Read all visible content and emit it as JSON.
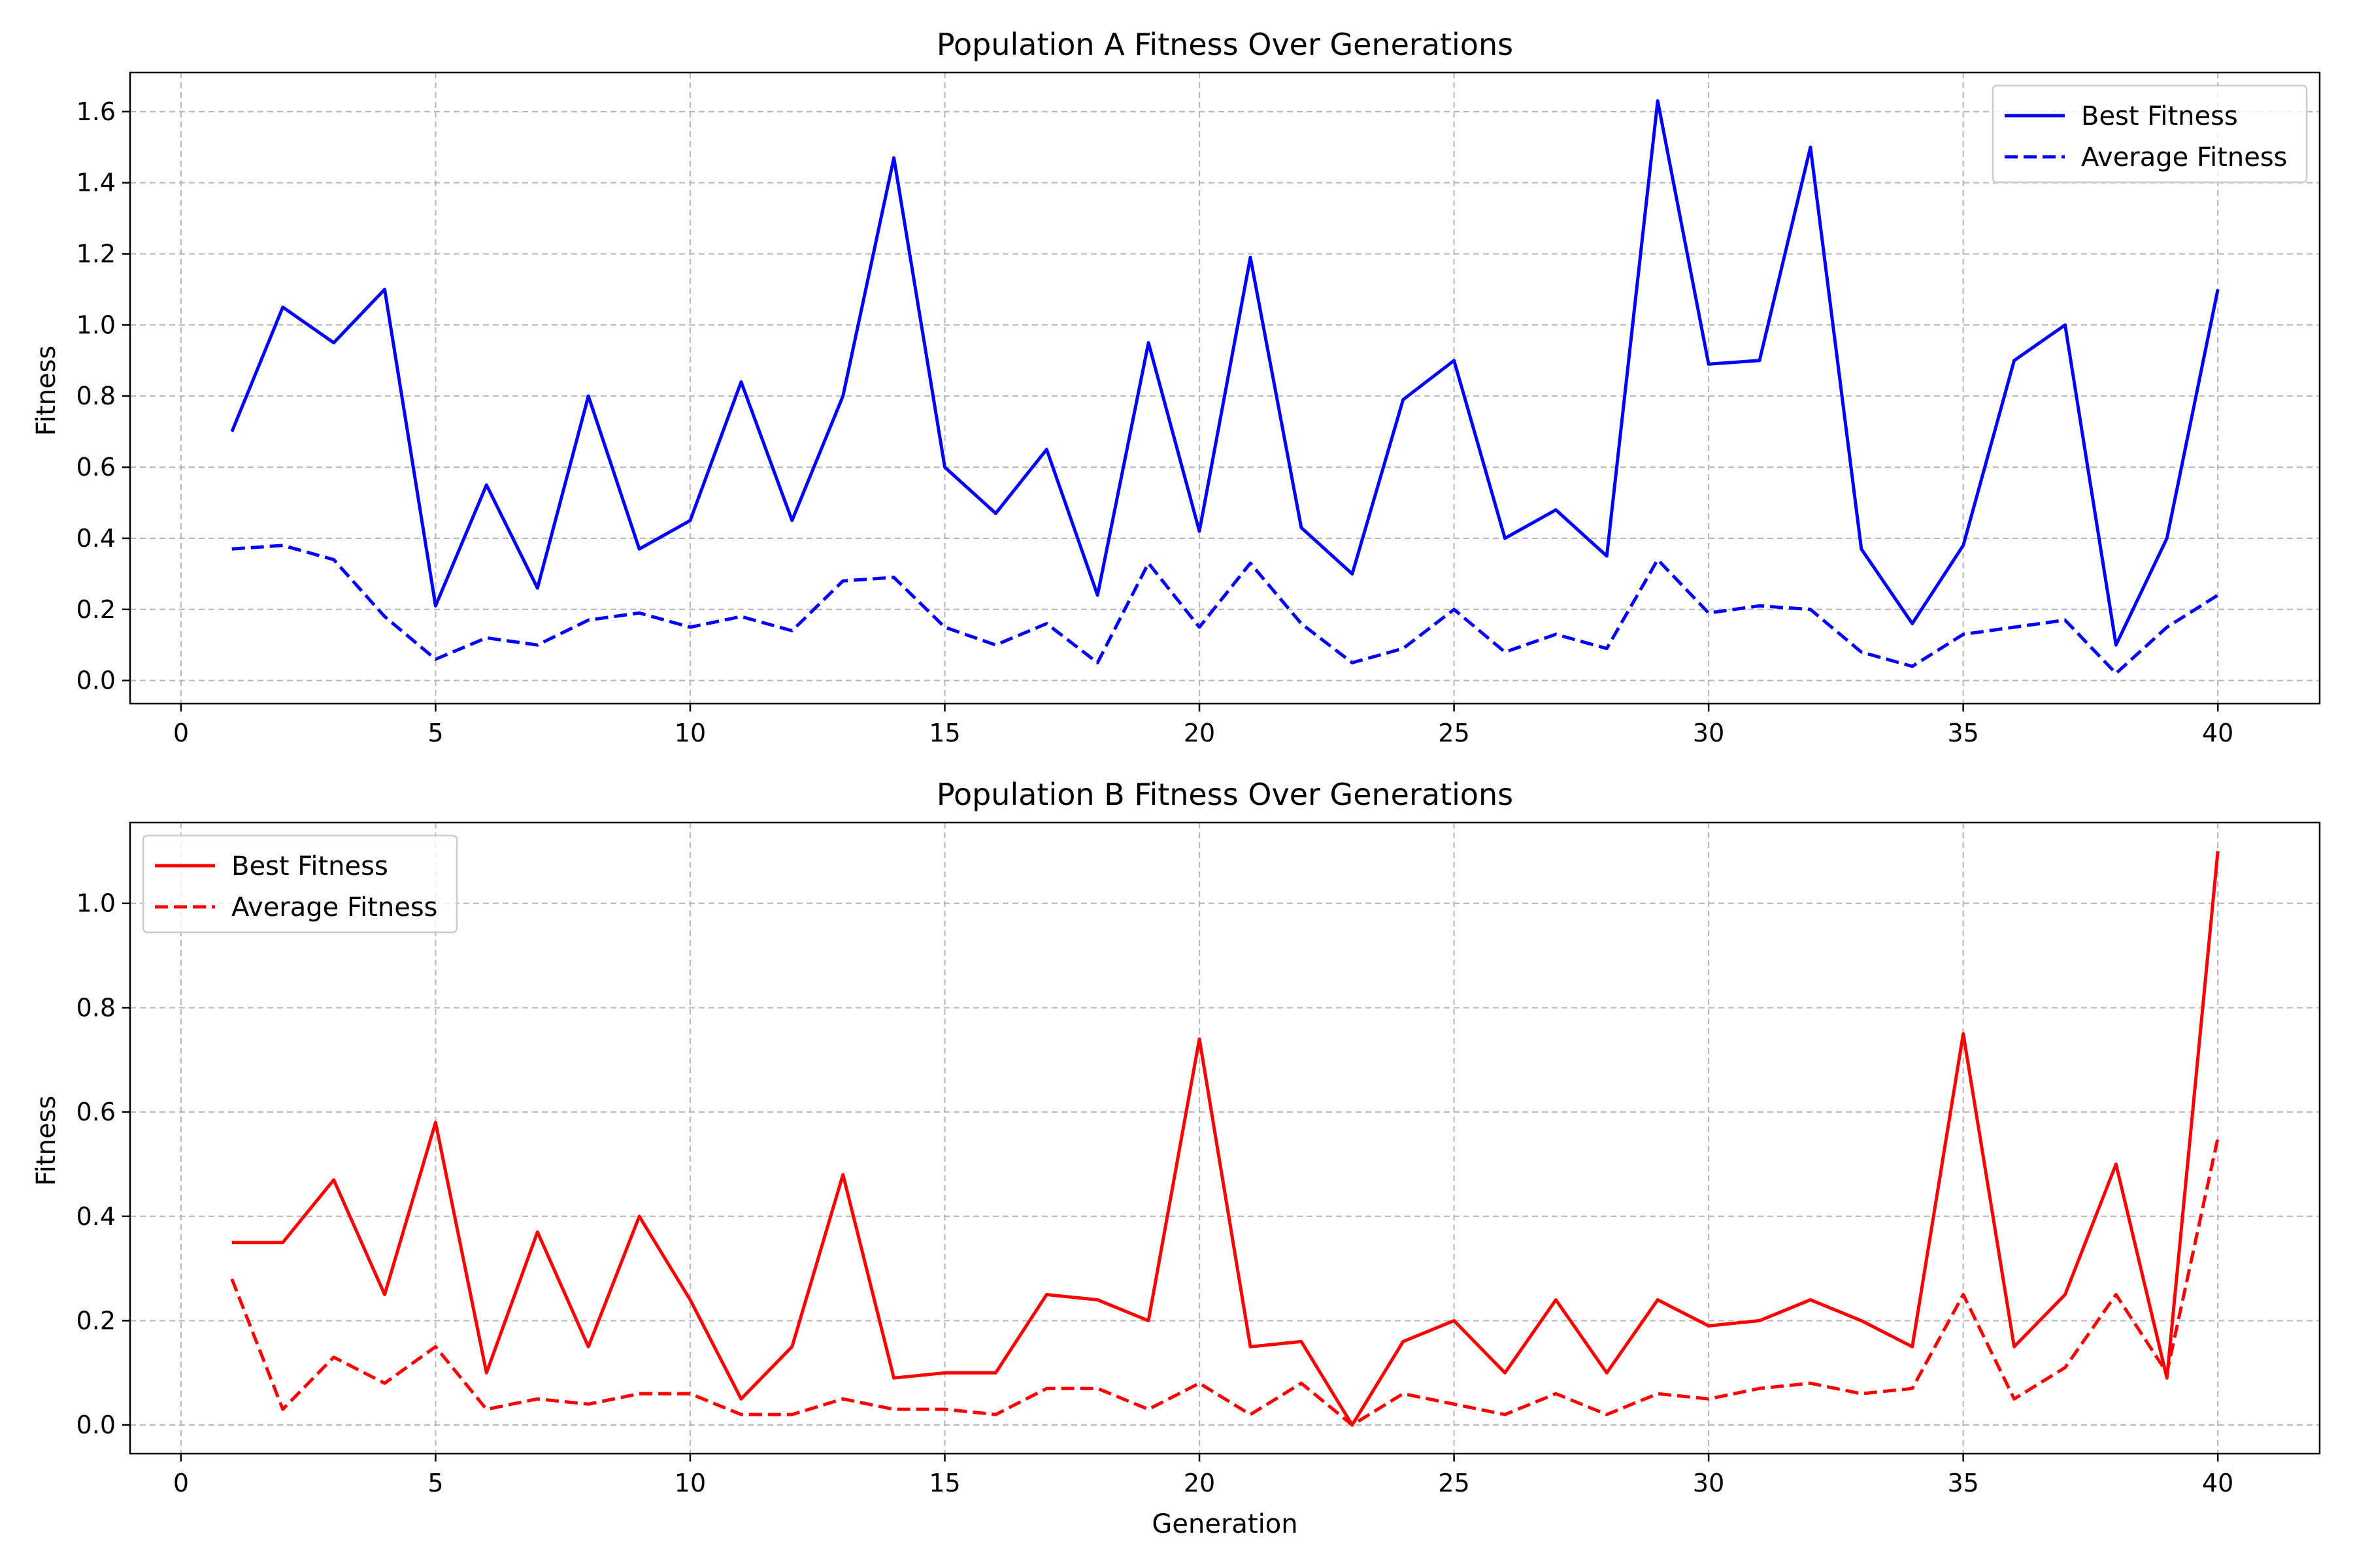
{
  "chart_data": [
    {
      "type": "line",
      "title": "Population A Fitness Over Generations",
      "xlabel": "",
      "ylabel": "Fitness",
      "xlim": [
        -1,
        42
      ],
      "ylim": [
        -0.065,
        1.71
      ],
      "xticks": [
        0,
        5,
        10,
        15,
        20,
        25,
        30,
        35,
        40
      ],
      "yticks": [
        0.0,
        0.2,
        0.4,
        0.6,
        0.8,
        1.0,
        1.2,
        1.4,
        1.6
      ],
      "grid": true,
      "legend_position": "top-right",
      "color": "#0000ff",
      "x": [
        1,
        2,
        3,
        4,
        5,
        6,
        7,
        8,
        9,
        10,
        11,
        12,
        13,
        14,
        15,
        16,
        17,
        18,
        19,
        20,
        21,
        22,
        23,
        24,
        25,
        26,
        27,
        28,
        29,
        30,
        31,
        32,
        33,
        34,
        35,
        36,
        37,
        38,
        39,
        40
      ],
      "series": [
        {
          "name": "Best Fitness",
          "style": "solid",
          "values": [
            0.7,
            1.05,
            0.95,
            1.1,
            0.21,
            0.55,
            0.26,
            0.8,
            0.37,
            0.45,
            0.84,
            0.45,
            0.8,
            1.47,
            0.6,
            0.47,
            0.65,
            0.24,
            0.95,
            0.42,
            1.19,
            0.43,
            0.3,
            0.79,
            0.9,
            0.4,
            0.48,
            0.35,
            1.63,
            0.89,
            0.9,
            1.5,
            0.37,
            0.16,
            0.38,
            0.9,
            1.0,
            0.1,
            0.4,
            1.1
          ]
        },
        {
          "name": "Average Fitness",
          "style": "dashed",
          "values": [
            0.37,
            0.38,
            0.34,
            0.18,
            0.06,
            0.12,
            0.1,
            0.17,
            0.19,
            0.15,
            0.18,
            0.14,
            0.28,
            0.29,
            0.15,
            0.1,
            0.16,
            0.05,
            0.33,
            0.15,
            0.33,
            0.16,
            0.05,
            0.09,
            0.2,
            0.08,
            0.13,
            0.09,
            0.34,
            0.19,
            0.21,
            0.2,
            0.08,
            0.04,
            0.13,
            0.15,
            0.17,
            0.02,
            0.15,
            0.24
          ]
        }
      ]
    },
    {
      "type": "line",
      "title": "Population B Fitness Over Generations",
      "xlabel": "Generation",
      "ylabel": "Fitness",
      "xlim": [
        -1,
        42
      ],
      "ylim": [
        -0.055,
        1.155
      ],
      "xticks": [
        0,
        5,
        10,
        15,
        20,
        25,
        30,
        35,
        40
      ],
      "yticks": [
        0.0,
        0.2,
        0.4,
        0.6,
        0.8,
        1.0
      ],
      "grid": true,
      "legend_position": "top-left",
      "color": "#ff0000",
      "x": [
        1,
        2,
        3,
        4,
        5,
        6,
        7,
        8,
        9,
        10,
        11,
        12,
        13,
        14,
        15,
        16,
        17,
        18,
        19,
        20,
        21,
        22,
        23,
        24,
        25,
        26,
        27,
        28,
        29,
        30,
        31,
        32,
        33,
        34,
        35,
        36,
        37,
        38,
        39,
        40
      ],
      "series": [
        {
          "name": "Best Fitness",
          "style": "solid",
          "values": [
            0.35,
            0.35,
            0.47,
            0.25,
            0.58,
            0.1,
            0.37,
            0.15,
            0.4,
            0.24,
            0.05,
            0.15,
            0.48,
            0.09,
            0.1,
            0.1,
            0.25,
            0.24,
            0.2,
            0.74,
            0.15,
            0.16,
            0.0,
            0.16,
            0.2,
            0.1,
            0.24,
            0.1,
            0.24,
            0.19,
            0.2,
            0.24,
            0.2,
            0.15,
            0.75,
            0.15,
            0.25,
            0.5,
            0.09,
            1.1
          ]
        },
        {
          "name": "Average Fitness",
          "style": "dashed",
          "values": [
            0.28,
            0.03,
            0.13,
            0.08,
            0.15,
            0.03,
            0.05,
            0.04,
            0.06,
            0.06,
            0.02,
            0.02,
            0.05,
            0.03,
            0.03,
            0.02,
            0.07,
            0.07,
            0.03,
            0.08,
            0.02,
            0.08,
            0.0,
            0.06,
            0.04,
            0.02,
            0.06,
            0.02,
            0.06,
            0.05,
            0.07,
            0.08,
            0.06,
            0.07,
            0.25,
            0.05,
            0.11,
            0.25,
            0.1,
            0.55
          ]
        }
      ]
    }
  ]
}
